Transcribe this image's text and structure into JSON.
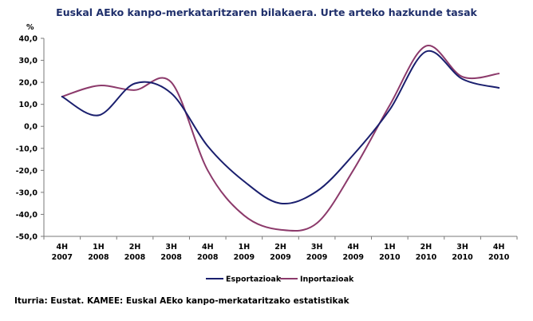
{
  "chart_data": {
    "type": "line",
    "title": "Euskal AEko kanpo-merkataritzaren bilakaera. Urte arteko hazkunde tasak",
    "ylabel": "%",
    "xlabel": "",
    "ylim": [
      -50,
      40
    ],
    "yticks": [
      "40,0",
      "30,0",
      "20,0",
      "10,0",
      "0,0",
      "-10,0",
      "-20,0",
      "-30,0",
      "-40,0",
      "-50,0"
    ],
    "categories": [
      {
        "q": "4H",
        "year": "2007"
      },
      {
        "q": "1H",
        "year": "2008"
      },
      {
        "q": "2H",
        "year": "2008"
      },
      {
        "q": "3H",
        "year": "2008"
      },
      {
        "q": "4H",
        "year": "2008"
      },
      {
        "q": "1H",
        "year": "2009"
      },
      {
        "q": "2H",
        "year": "2009"
      },
      {
        "q": "3H",
        "year": "2009"
      },
      {
        "q": "4H",
        "year": "2009"
      },
      {
        "q": "1H",
        "year": "2010"
      },
      {
        "q": "2H",
        "year": "2010"
      },
      {
        "q": "3H",
        "year": "2010"
      },
      {
        "q": "4H",
        "year": "2010"
      }
    ],
    "grid": false,
    "legend_position": "bottom",
    "series": [
      {
        "name": "Esportazioak",
        "color": "#1a1f6e",
        "values": [
          13.5,
          5.0,
          19.5,
          15.0,
          -9.0,
          -25.0,
          -35.0,
          -29.5,
          -13.0,
          7.5,
          34.0,
          21.5,
          17.5
        ]
      },
      {
        "name": "Inportazioak",
        "color": "#8c3a6b",
        "values": [
          13.5,
          18.5,
          16.5,
          20.0,
          -20.0,
          -40.5,
          -47.0,
          -44.0,
          -20.0,
          9.5,
          36.5,
          22.5,
          24.0
        ]
      }
    ]
  },
  "source": "Iturria: Eustat. KAMEE: Euskal AEko kanpo-merkataritzako estatistikak"
}
